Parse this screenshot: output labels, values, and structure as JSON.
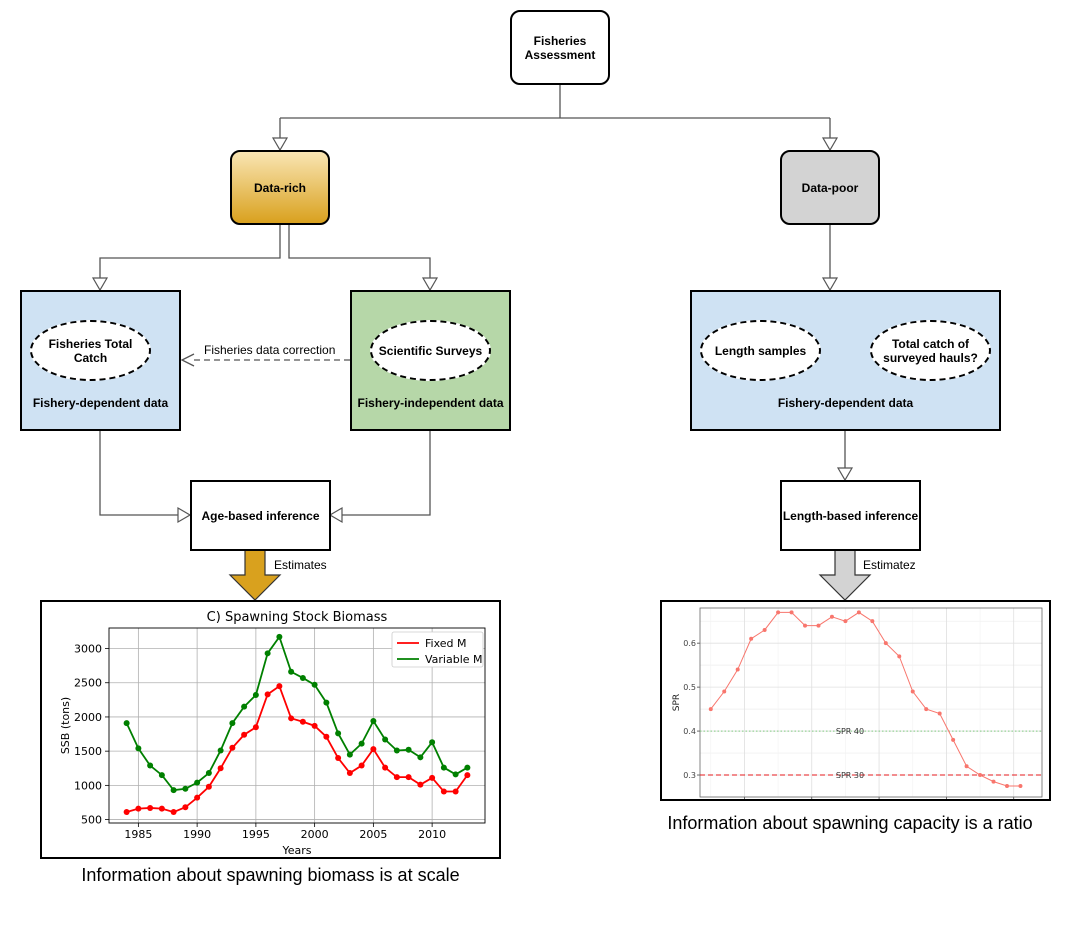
{
  "nodes": {
    "root": "Fisheries Assessment",
    "data_rich": "Data-rich",
    "data_poor": "Data-poor",
    "total_catch": "Fisheries Total Catch",
    "dependent_left": "Fishery-dependent data",
    "surveys": "Scientific Surveys",
    "independent": "Fishery-independent data",
    "length_samples": "Length samples",
    "hauls": "Total catch of surveyed hauls?",
    "dependent_right": "Fishery-dependent data",
    "age_inference": "Age-based inference",
    "length_inference": "Length-based inference"
  },
  "edges": {
    "correction": "Fisheries data correction",
    "estimates_left": "Estimates",
    "estimates_right": "Estimatez"
  },
  "captions": {
    "left": "Information about spawning biomass is at scale",
    "right": "Information about spawning capacity is a ratio"
  },
  "colors": {
    "data_rich_top": "#f9e5b3",
    "data_rich_bottom": "#d9a11e",
    "data_poor": "#d3d3d3",
    "blue_panel": "#cfe2f3",
    "green_panel": "#b6d7a8",
    "arrow_gold": "#d9a11e",
    "arrow_gray": "#d3d3d3",
    "fixed_m": "#ff0000",
    "variable_m": "#008000",
    "spr_line": "#f8766d"
  },
  "chart_data": [
    {
      "type": "line",
      "title": "C) Spawning Stock Biomass",
      "xlabel": "Years",
      "ylabel": "SSB (tons)",
      "xlim": [
        1982.5,
        2014.5
      ],
      "ylim": [
        450,
        3300
      ],
      "xticks": [
        1985,
        1990,
        1995,
        2000,
        2005,
        2010
      ],
      "yticks": [
        500,
        1000,
        1500,
        2000,
        2500,
        3000
      ],
      "grid": true,
      "legend_position": "top-right",
      "x": [
        1984,
        1985,
        1986,
        1987,
        1988,
        1989,
        1990,
        1991,
        1992,
        1993,
        1994,
        1995,
        1996,
        1997,
        1998,
        1999,
        2000,
        2001,
        2002,
        2003,
        2004,
        2005,
        2006,
        2007,
        2008,
        2009,
        2010,
        2011,
        2012,
        2013
      ],
      "series": [
        {
          "name": "Fixed M",
          "color": "#ff0000",
          "values": [
            610,
            660,
            670,
            660,
            610,
            680,
            820,
            980,
            1250,
            1550,
            1740,
            1850,
            2330,
            2450,
            1980,
            1930,
            1870,
            1710,
            1400,
            1180,
            1290,
            1530,
            1260,
            1120,
            1120,
            1010,
            1110,
            910,
            910,
            1150
          ]
        },
        {
          "name": "Variable M",
          "color": "#008000",
          "values": [
            1910,
            1540,
            1290,
            1150,
            930,
            950,
            1040,
            1180,
            1510,
            1910,
            2150,
            2320,
            2930,
            3170,
            2660,
            2570,
            2470,
            2210,
            1760,
            1450,
            1610,
            1940,
            1670,
            1510,
            1520,
            1410,
            1630,
            1260,
            1160,
            1260
          ]
        }
      ]
    },
    {
      "type": "line",
      "ylabel": "SPR",
      "ylim": [
        0.25,
        0.68
      ],
      "yticks": [
        0.3,
        0.4,
        0.5,
        0.6
      ],
      "grid": true,
      "x": [
        1,
        2,
        3,
        4,
        5,
        6,
        7,
        8,
        9,
        10,
        11,
        12,
        13,
        14,
        15,
        16,
        17,
        18,
        19,
        20,
        21,
        22,
        23,
        24
      ],
      "series": [
        {
          "color": "#f8766d",
          "values": [
            0.45,
            0.49,
            0.54,
            0.61,
            0.63,
            0.67,
            0.67,
            0.64,
            0.64,
            0.66,
            0.65,
            0.67,
            0.65,
            0.6,
            0.57,
            0.49,
            0.45,
            0.44,
            0.38,
            0.32,
            0.3,
            0.285,
            0.275,
            0.275
          ]
        }
      ],
      "reference_lines": [
        {
          "label": "SPR 40",
          "value": 0.4,
          "style": "dotted",
          "color": "#7fc97f"
        },
        {
          "label": "SPR 30",
          "value": 0.3,
          "style": "dashed",
          "color": "#e41a1c"
        }
      ]
    }
  ]
}
